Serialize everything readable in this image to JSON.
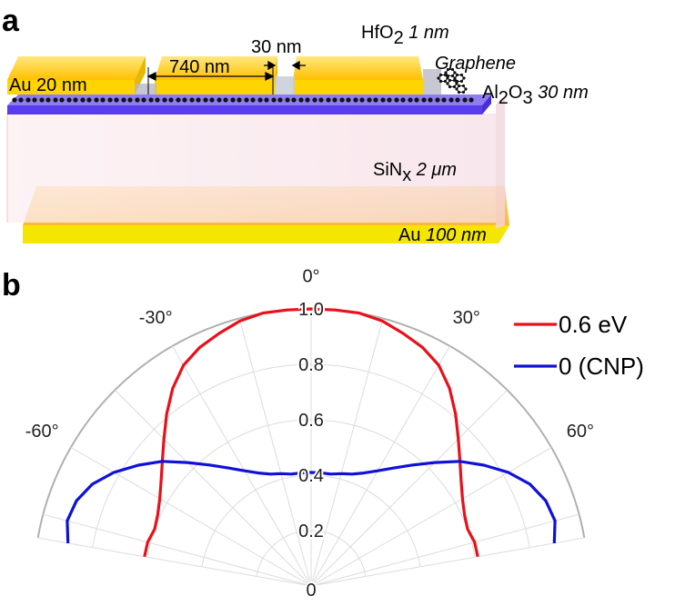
{
  "panel_a": {
    "letter": "a",
    "labels": {
      "au_top": "Au 20 nm",
      "gap_width": "740 nm",
      "slot_width": "30 nm",
      "hfo2_prefix": "HfO",
      "hfo2_sub": "2",
      "hfo2_suffix": " 1 nm",
      "graphene": "Graphene",
      "al2o3_a": "Al",
      "al2o3_sub1": "2",
      "al2o3_b": "O",
      "al2o3_sub2": "3",
      "al2o3_suffix": " 30 nm",
      "sinx_a": "SiN",
      "sinx_sub": "x",
      "sinx_suffix": " 2 μm",
      "au_bottom_a": "Au ",
      "au_bottom_b": "100 nm"
    },
    "colors": {
      "gold": "#FFC125",
      "gold_light": "#FFE066",
      "al2o3": "#6B4CF0",
      "sinx": "#F6E2E8",
      "graphene": "#000000"
    }
  },
  "panel_b": {
    "letter": "b"
  },
  "chart_data": {
    "type": "polar",
    "theta_ticks": [
      "-60°",
      "-30°",
      "0°",
      "30°",
      "60°"
    ],
    "theta_tick_values": [
      -60,
      -30,
      0,
      30,
      60
    ],
    "r_ticks": [
      "0",
      "0.2",
      "0.4",
      "0.6",
      "0.8",
      "1.0"
    ],
    "r_tick_values": [
      0,
      0.2,
      0.4,
      0.6,
      0.8,
      1.0
    ],
    "theta_range": [
      -80,
      80
    ],
    "r_range": [
      0,
      1.0
    ],
    "grid": true,
    "legend_position": "top-right",
    "series": [
      {
        "name": "0.6 eV",
        "color": "#e8101a",
        "theta": [
          -80,
          -75,
          -70,
          -65,
          -60,
          -55,
          -50,
          -45,
          -40,
          -35,
          -30,
          -25,
          -20,
          -15,
          -10,
          -5,
          0,
          5,
          10,
          15,
          20,
          25,
          30,
          35,
          40,
          45,
          50,
          55,
          60,
          65,
          70,
          75,
          80
        ],
        "r": [
          0.61,
          0.61,
          0.6,
          0.61,
          0.63,
          0.66,
          0.7,
          0.75,
          0.81,
          0.87,
          0.92,
          0.95,
          0.97,
          0.99,
          1.0,
          1.0,
          1.0,
          1.0,
          1.0,
          0.99,
          0.97,
          0.95,
          0.92,
          0.87,
          0.81,
          0.75,
          0.7,
          0.66,
          0.63,
          0.61,
          0.6,
          0.61,
          0.61
        ]
      },
      {
        "name": "0 (CNP)",
        "color": "#1010d8",
        "theta": [
          -80,
          -75,
          -70,
          -65,
          -60,
          -55,
          -50,
          -45,
          -40,
          -35,
          -30,
          -25,
          -20,
          -15,
          -10,
          -5,
          0,
          5,
          10,
          15,
          20,
          25,
          30,
          35,
          40,
          45,
          50,
          55,
          60,
          65,
          70,
          75,
          80
        ],
        "r": [
          0.89,
          0.91,
          0.9,
          0.87,
          0.82,
          0.76,
          0.7,
          0.63,
          0.57,
          0.52,
          0.48,
          0.45,
          0.43,
          0.42,
          0.41,
          0.41,
          0.41,
          0.41,
          0.41,
          0.42,
          0.43,
          0.45,
          0.48,
          0.52,
          0.57,
          0.63,
          0.7,
          0.76,
          0.82,
          0.87,
          0.9,
          0.91,
          0.89
        ]
      }
    ]
  }
}
